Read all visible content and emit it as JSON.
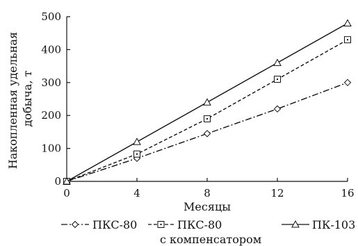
{
  "chart_data": {
    "type": "line",
    "title": "",
    "xlabel": "Месяцы",
    "ylabel_lines": [
      "Накопленная удельная",
      "добыча, т"
    ],
    "x": [
      0,
      4,
      8,
      12,
      16
    ],
    "x_ticks": [
      "0",
      "4",
      "8",
      "12",
      "16"
    ],
    "y_ticks": [
      "0",
      "100",
      "200",
      "300",
      "400",
      "500"
    ],
    "xlim": [
      0,
      16
    ],
    "ylim": [
      0,
      500
    ],
    "grid": false,
    "legend_position": "bottom",
    "series": [
      {
        "name": "ПКС-80",
        "marker": "diamond",
        "line_style": "dash-dot",
        "values": [
          0,
          70,
          145,
          220,
          300
        ]
      },
      {
        "name": "ПКС-80",
        "name_line2": "с компенсатором",
        "marker": "square-dot",
        "line_style": "dashed",
        "values": [
          0,
          83,
          190,
          310,
          430
        ]
      },
      {
        "name": "ПК-103",
        "marker": "triangle",
        "line_style": "solid",
        "values": [
          0,
          120,
          240,
          360,
          480
        ]
      }
    ],
    "colors": {
      "line": "#111111",
      "marker_fill": "#ffffff"
    }
  }
}
